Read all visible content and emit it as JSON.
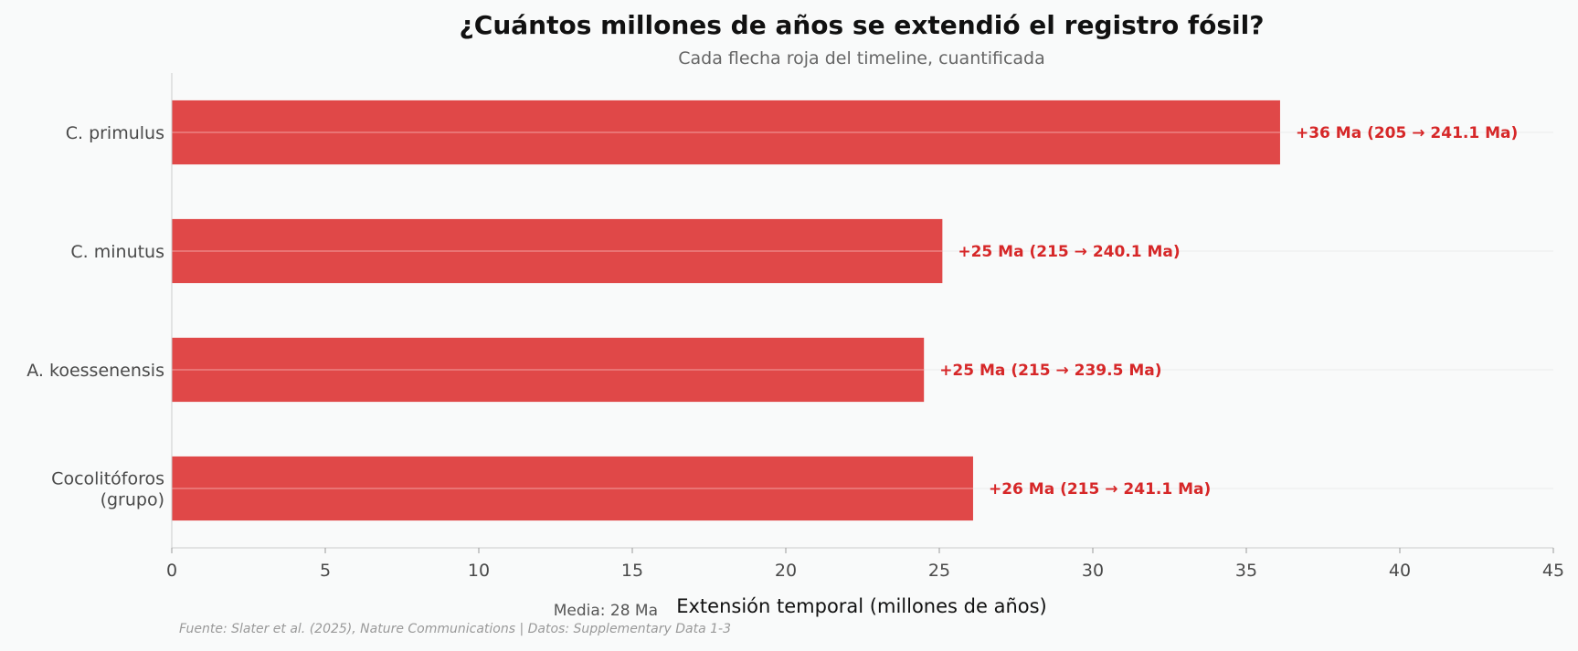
{
  "chart_data": {
    "type": "bar",
    "orientation": "horizontal",
    "title": "¿Cuántos millones de años se extendió el registro fósil?",
    "subtitle": "Cada flecha roja del timeline, cuantificada",
    "xlabel": "Extensión temporal (millones de años)",
    "ylabel": "",
    "xlim": [
      0,
      45
    ],
    "xticks": [
      "0",
      "5",
      "10",
      "15",
      "20",
      "25",
      "30",
      "35",
      "40",
      "45"
    ],
    "grid": "x",
    "categories": [
      [
        "C. primulus"
      ],
      [
        "C. minutus"
      ],
      [
        "A. koessenensis"
      ],
      [
        "Cocolitóforos",
        "(grupo)"
      ]
    ],
    "values": [
      36.1,
      25.1,
      24.5,
      26.1
    ],
    "bar_labels": [
      "+36 Ma (205 → 241.1 Ma)",
      "+25 Ma (215 → 240.1 Ma)",
      "+25 Ma (215 → 239.5 Ma)",
      "+26 Ma (215 → 241.1 Ma)"
    ],
    "bar_color": "#e04848",
    "label_color": "#d62728",
    "mean_annotation": "Media: 28 Ma",
    "source": "Fuente: Slater et al. (2025), Nature Communications | Datos: Supplementary Data 1-3"
  }
}
